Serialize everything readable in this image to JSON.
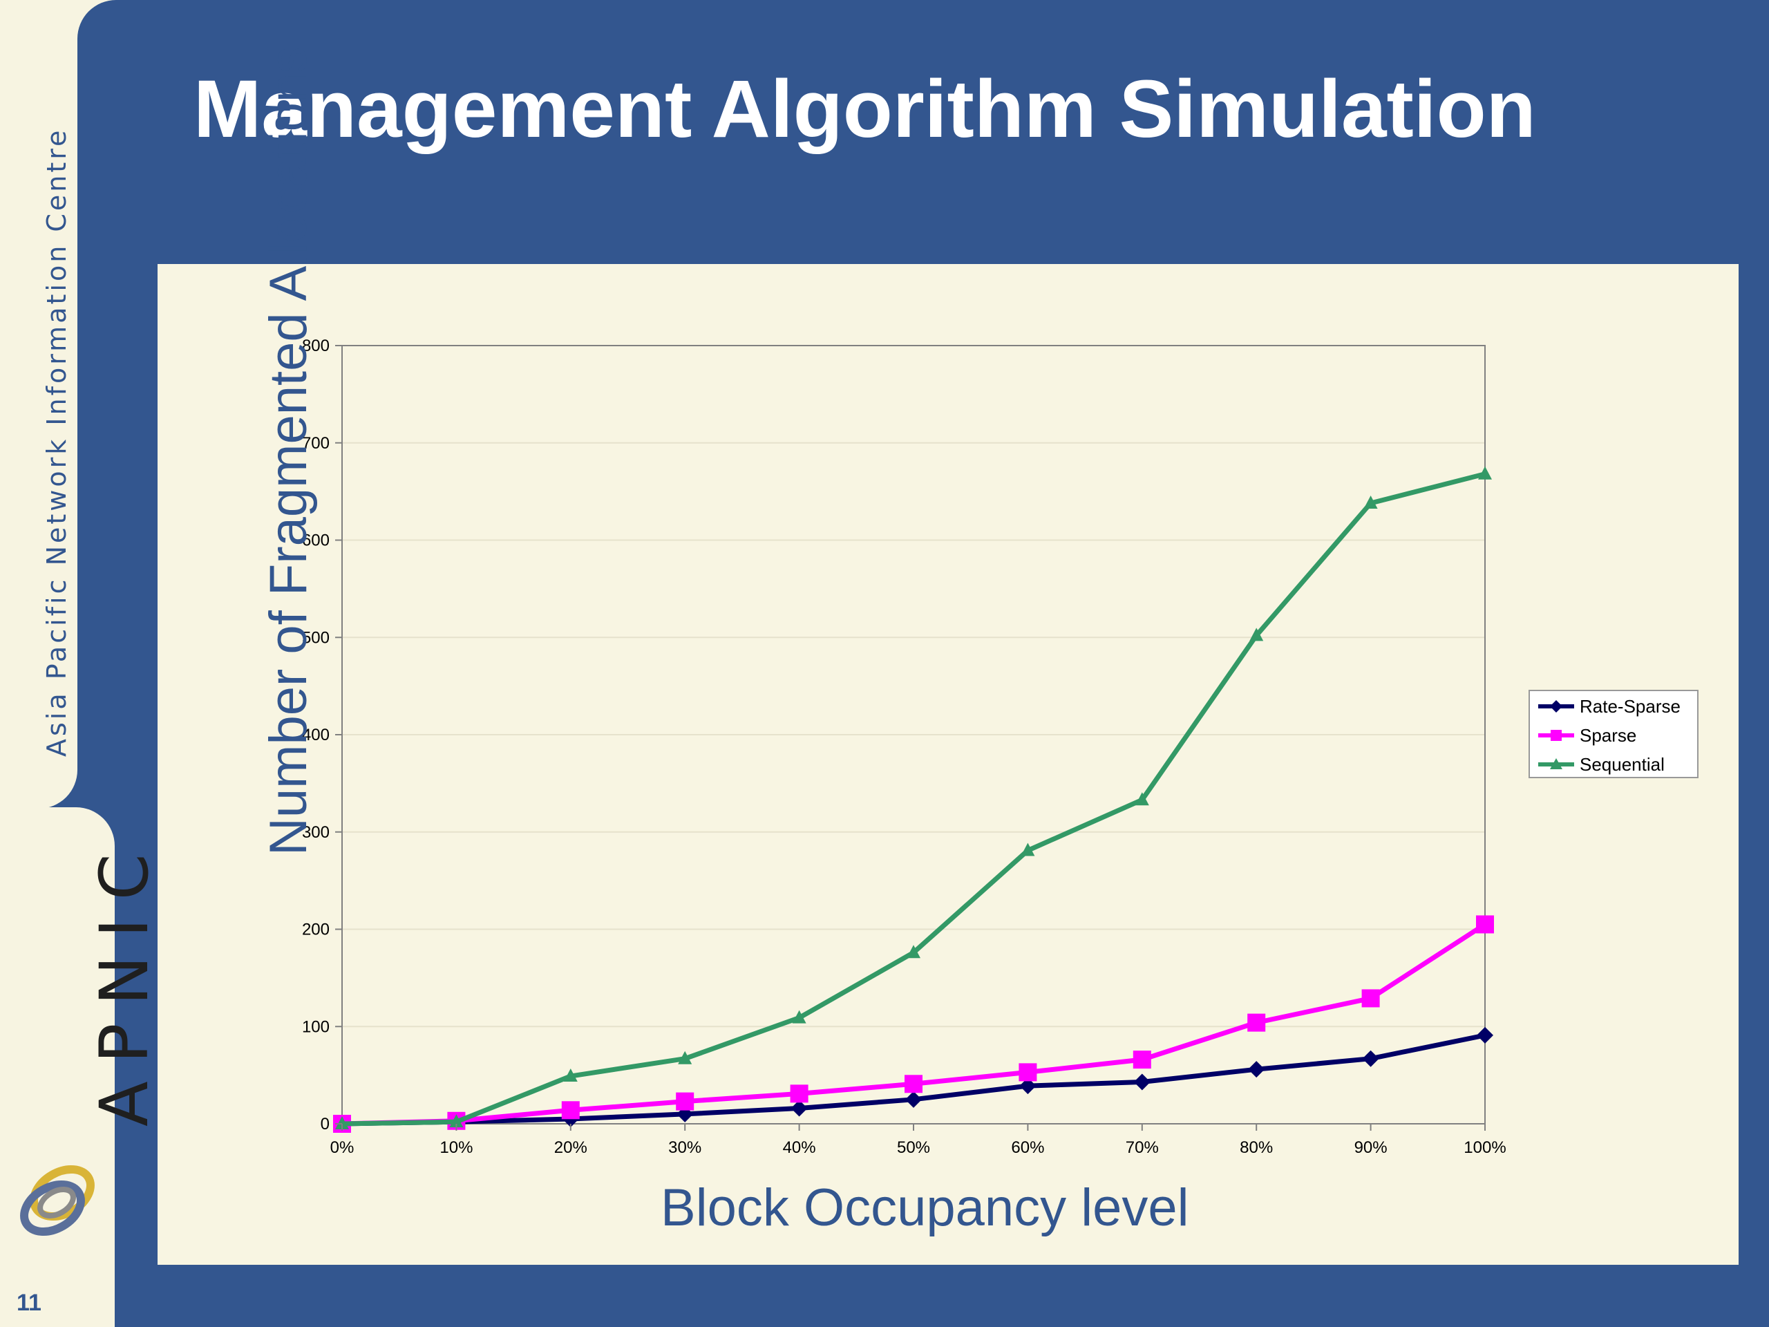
{
  "slide": {
    "title": "Management Algorithm Simulation",
    "organization": "Asia Pacific Network Information Centre",
    "logo_text": "APNIC",
    "page_number": "11"
  },
  "colors": {
    "background_blue": "#33568f",
    "panel": "#f8f5e2",
    "sidebar": "#f7f4e1",
    "rate_sparse": "#000066",
    "sparse": "#ff00ff",
    "sequential": "#339966"
  },
  "chart_data": {
    "type": "line",
    "title": "",
    "xlabel": "Block Occupancy level",
    "ylabel": "Number of Fragmented Allocations",
    "categories": [
      "0%",
      "10%",
      "20%",
      "30%",
      "40%",
      "50%",
      "60%",
      "70%",
      "80%",
      "90%",
      "100%"
    ],
    "ylim": [
      0,
      800
    ],
    "yticks": [
      "0",
      "100",
      "200",
      "300",
      "400",
      "500",
      "600",
      "700",
      "800"
    ],
    "grid": true,
    "legend_position": "right",
    "series": [
      {
        "name": "Rate-Sparse",
        "marker": "diamond",
        "color": "#000066",
        "values": [
          0,
          2,
          5,
          10,
          16,
          25,
          39,
          43,
          56,
          67,
          91
        ]
      },
      {
        "name": "Sparse",
        "marker": "square",
        "color": "#ff00ff",
        "values": [
          0,
          3,
          14,
          23,
          31,
          41,
          53,
          66,
          104,
          129,
          205
        ]
      },
      {
        "name": "Sequential",
        "marker": "triangle",
        "color": "#339966",
        "values": [
          0,
          2,
          49,
          67,
          109,
          176,
          281,
          333,
          502,
          638,
          668
        ]
      }
    ]
  }
}
